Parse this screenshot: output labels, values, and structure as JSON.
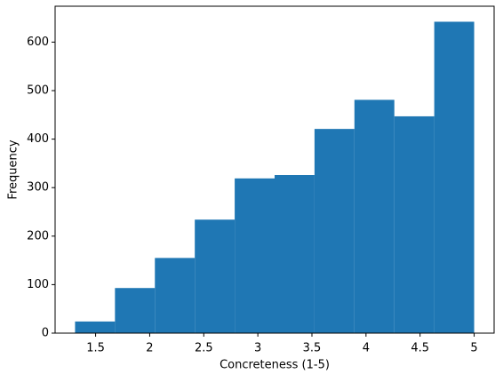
{
  "chart_data": {
    "type": "histogram",
    "xlabel": "Concreteness (1-5)",
    "ylabel": "Frequency",
    "bins": [
      1.31,
      1.679,
      2.048,
      2.417,
      2.786,
      3.155,
      3.524,
      3.893,
      4.262,
      4.631,
      5.0
    ],
    "counts": [
      24,
      93,
      155,
      234,
      319,
      326,
      421,
      481,
      447,
      642
    ],
    "color": "#1f77b4",
    "xlim": [
      1.1255,
      5.1845
    ],
    "xticks": [
      1.5,
      2.0,
      2.5,
      3.0,
      3.5,
      4.0,
      4.5,
      5.0
    ],
    "ylim": [
      0,
      674
    ],
    "yticks": [
      0,
      100,
      200,
      300,
      400,
      500,
      600
    ]
  }
}
